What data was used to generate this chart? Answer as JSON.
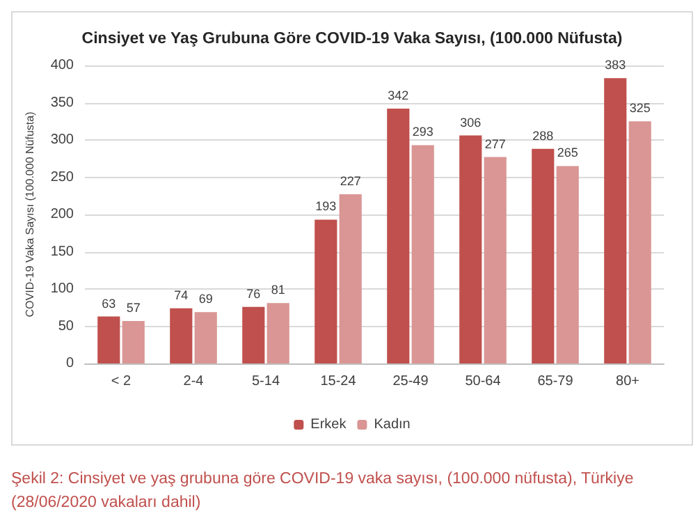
{
  "chart_data": {
    "type": "bar",
    "title": "Cinsiyet ve Yaş Grubuna Göre COVID-19 Vaka Sayısı, (100.000 Nüfusta)",
    "ylabel": "COVID-19 Vaka Sayısı (100.000 Nüfusta)",
    "categories": [
      "< 2",
      "2-4",
      "5-14",
      "15-24",
      "25-49",
      "50-64",
      "65-79",
      "80+"
    ],
    "series": [
      {
        "name": "Erkek",
        "color": "#c0504d",
        "values": [
          63,
          74,
          76,
          193,
          342,
          306,
          288,
          383
        ]
      },
      {
        "name": "Kadın",
        "color": "#d99694",
        "values": [
          57,
          69,
          81,
          227,
          293,
          277,
          265,
          325
        ]
      }
    ],
    "ylim": [
      0,
      400
    ],
    "yticks": [
      0,
      50,
      100,
      150,
      200,
      250,
      300,
      350,
      400
    ],
    "grid": "y",
    "legend": "bottom",
    "data_labels": true,
    "annotations": [
      "Şekil 2: Cinsiyet ve yaş grubuna göre COVID-19 vaka sayısı, (100.000 nüfusta), Türkiye (28/06/2020 vakaları dahil)"
    ]
  }
}
